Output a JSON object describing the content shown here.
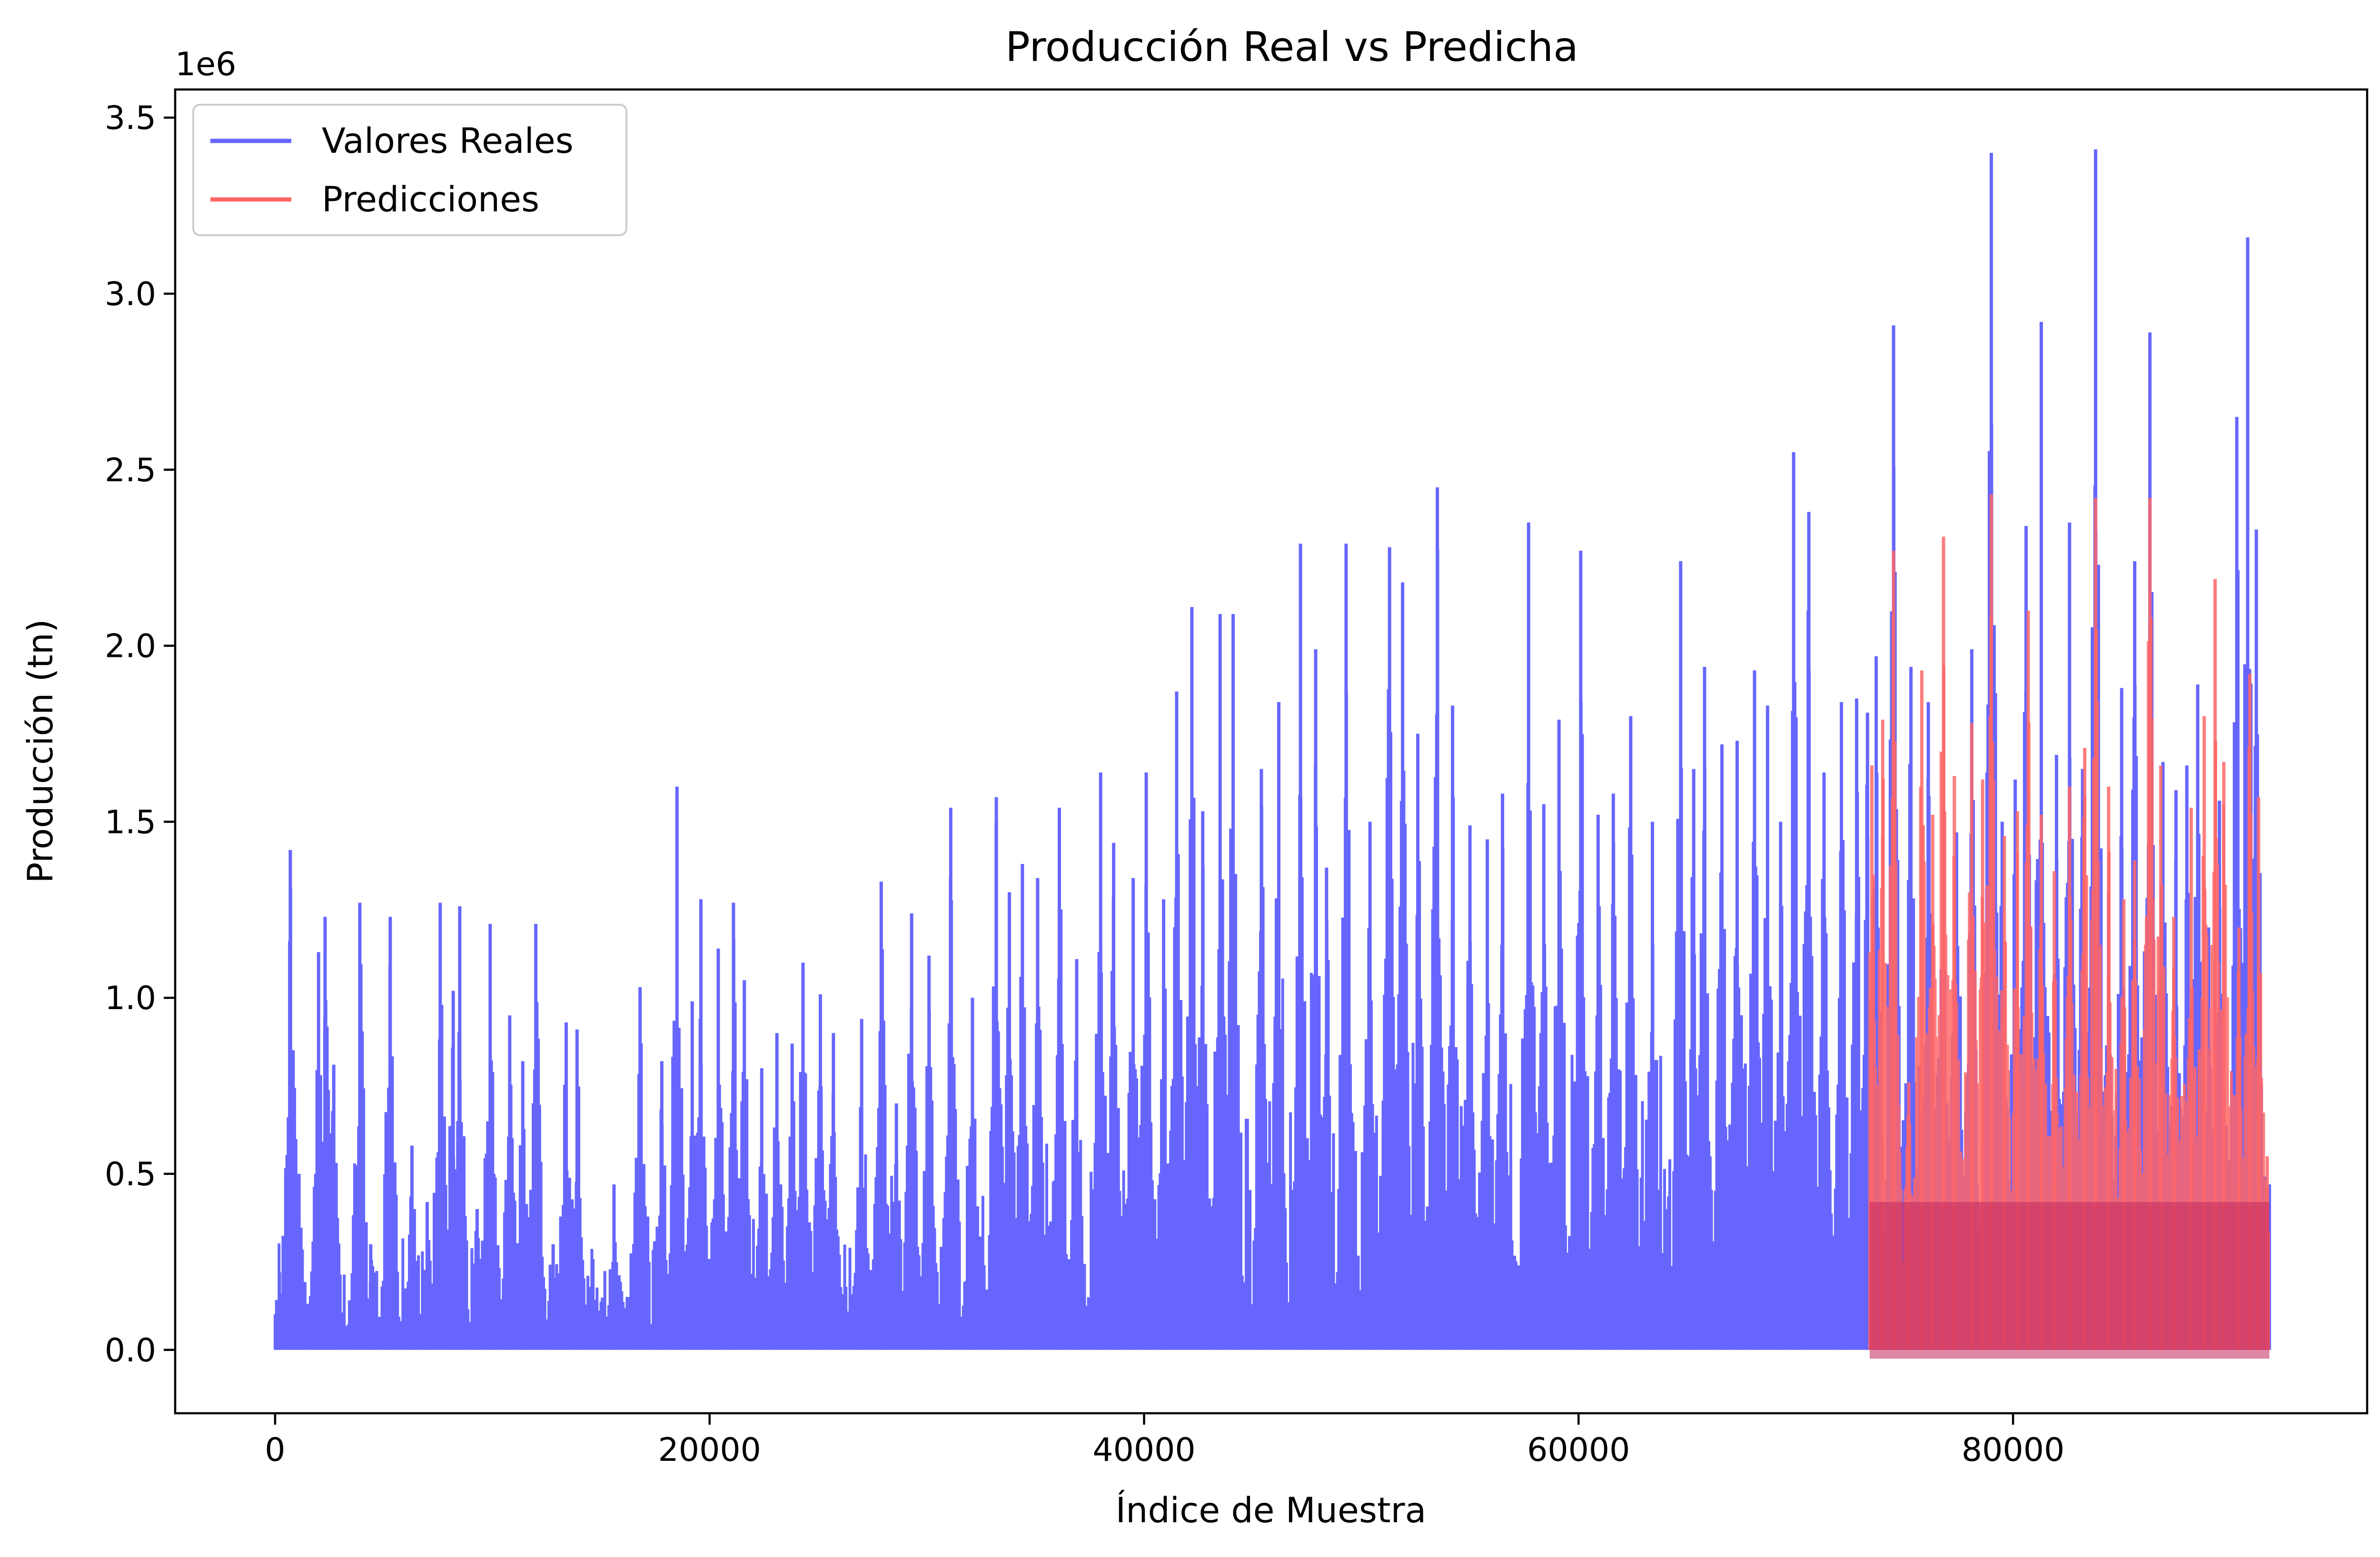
{
  "chart_data": {
    "type": "line",
    "title": "Producción Real vs Predicha",
    "xlabel": "Índice de Muestra",
    "ylabel": "Producción (tn)",
    "y_offset_label": "1e6",
    "xlim": [
      -4600,
      96300
    ],
    "ylim": [
      -180000,
      3580000
    ],
    "x_ticks": [
      0,
      20000,
      40000,
      60000,
      80000
    ],
    "x_tick_labels": [
      "0",
      "20000",
      "40000",
      "60000",
      "80000"
    ],
    "y_ticks": [
      0,
      500000,
      1000000,
      1500000,
      2000000,
      2500000,
      3000000,
      3500000
    ],
    "y_tick_labels": [
      "0.0",
      "0.5",
      "1.0",
      "1.5",
      "2.0",
      "2.5",
      "3.0",
      "3.5"
    ],
    "grid": false,
    "legend_position": "top-left",
    "colors": {
      "real": "#6666ff",
      "pred": "#ff6666",
      "overlap": "#c2265f"
    },
    "series": [
      {
        "name": "Valores Reales",
        "color": "#6666ff",
        "x_range": [
          0,
          91800
        ],
        "peaks": [
          [
            200,
            220000
          ],
          [
            700,
            1420000
          ],
          [
            1100,
            500000
          ],
          [
            2000,
            1130000
          ],
          [
            2300,
            1230000
          ],
          [
            2700,
            810000
          ],
          [
            3900,
            1270000
          ],
          [
            4400,
            300000
          ],
          [
            5300,
            1230000
          ],
          [
            6300,
            580000
          ],
          [
            7000,
            420000
          ],
          [
            7600,
            1270000
          ],
          [
            8200,
            1020000
          ],
          [
            8500,
            1260000
          ],
          [
            9300,
            400000
          ],
          [
            9900,
            1210000
          ],
          [
            10800,
            950000
          ],
          [
            11400,
            820000
          ],
          [
            12000,
            1210000
          ],
          [
            12800,
            300000
          ],
          [
            13400,
            930000
          ],
          [
            13900,
            910000
          ],
          [
            15600,
            470000
          ],
          [
            16800,
            1030000
          ],
          [
            17800,
            820000
          ],
          [
            18500,
            1600000
          ],
          [
            19200,
            990000
          ],
          [
            19600,
            1280000
          ],
          [
            20400,
            1140000
          ],
          [
            21100,
            1270000
          ],
          [
            21600,
            1050000
          ],
          [
            22400,
            800000
          ],
          [
            23100,
            900000
          ],
          [
            23800,
            870000
          ],
          [
            24300,
            1100000
          ],
          [
            25100,
            1010000
          ],
          [
            25700,
            900000
          ],
          [
            27000,
            940000
          ],
          [
            27900,
            1330000
          ],
          [
            28600,
            700000
          ],
          [
            29300,
            1240000
          ],
          [
            30100,
            1120000
          ],
          [
            31100,
            1540000
          ],
          [
            32100,
            1000000
          ],
          [
            33200,
            1570000
          ],
          [
            33800,
            1300000
          ],
          [
            34400,
            1380000
          ],
          [
            35100,
            1340000
          ],
          [
            36100,
            1540000
          ],
          [
            36900,
            1110000
          ],
          [
            38000,
            1640000
          ],
          [
            38600,
            1440000
          ],
          [
            39500,
            1340000
          ],
          [
            40100,
            1640000
          ],
          [
            40900,
            1280000
          ],
          [
            41500,
            1870000
          ],
          [
            42200,
            2110000
          ],
          [
            42700,
            1530000
          ],
          [
            43500,
            2090000
          ],
          [
            44100,
            2090000
          ],
          [
            45400,
            1650000
          ],
          [
            46200,
            1840000
          ],
          [
            47200,
            2290000
          ],
          [
            47900,
            1990000
          ],
          [
            48400,
            1370000
          ],
          [
            49300,
            2290000
          ],
          [
            50400,
            1500000
          ],
          [
            51300,
            2280000
          ],
          [
            51900,
            2180000
          ],
          [
            52600,
            1750000
          ],
          [
            53500,
            2450000
          ],
          [
            54200,
            1830000
          ],
          [
            55000,
            1490000
          ],
          [
            55800,
            1450000
          ],
          [
            56500,
            1580000
          ],
          [
            57700,
            2350000
          ],
          [
            58400,
            1550000
          ],
          [
            59100,
            1790000
          ],
          [
            60100,
            2270000
          ],
          [
            60900,
            1520000
          ],
          [
            61600,
            1580000
          ],
          [
            62400,
            1800000
          ],
          [
            63400,
            1500000
          ],
          [
            64700,
            2240000
          ],
          [
            65300,
            1650000
          ],
          [
            65800,
            1940000
          ],
          [
            66600,
            1720000
          ],
          [
            67300,
            1730000
          ],
          [
            68100,
            1930000
          ],
          [
            68700,
            1830000
          ],
          [
            69300,
            1500000
          ],
          [
            69900,
            2550000
          ],
          [
            70600,
            2380000
          ],
          [
            71300,
            1640000
          ],
          [
            72100,
            1840000
          ],
          [
            72800,
            1850000
          ],
          [
            73300,
            1810000
          ],
          [
            73700,
            1970000
          ],
          [
            74500,
            2910000
          ],
          [
            75300,
            1940000
          ],
          [
            76100,
            1840000
          ],
          [
            76800,
            1550000
          ],
          [
            77400,
            1470000
          ],
          [
            78100,
            1990000
          ],
          [
            78800,
            1640000
          ],
          [
            79000,
            3400000
          ],
          [
            79500,
            1500000
          ],
          [
            80100,
            1620000
          ],
          [
            80600,
            2340000
          ],
          [
            81300,
            2920000
          ],
          [
            82000,
            1690000
          ],
          [
            82600,
            2350000
          ],
          [
            83200,
            1650000
          ],
          [
            83800,
            3410000
          ],
          [
            84400,
            1300000
          ],
          [
            85000,
            1880000
          ],
          [
            85600,
            2240000
          ],
          [
            86300,
            2890000
          ],
          [
            86900,
            1670000
          ],
          [
            87500,
            1590000
          ],
          [
            88000,
            1660000
          ],
          [
            88500,
            1890000
          ],
          [
            89000,
            1200000
          ],
          [
            89500,
            1560000
          ],
          [
            90300,
            2650000
          ],
          [
            90800,
            3160000
          ],
          [
            91200,
            2330000
          ],
          [
            91800,
            470000
          ]
        ]
      },
      {
        "name": "Predicciones",
        "color": "#ff6666",
        "x_range": [
          73400,
          91800
        ],
        "peaks": [
          [
            73500,
            1660000
          ],
          [
            74000,
            1790000
          ],
          [
            74500,
            2270000
          ],
          [
            75200,
            760000
          ],
          [
            75800,
            1930000
          ],
          [
            76300,
            1520000
          ],
          [
            76800,
            2310000
          ],
          [
            77300,
            1630000
          ],
          [
            78100,
            1780000
          ],
          [
            78600,
            1620000
          ],
          [
            79000,
            2430000
          ],
          [
            79600,
            1460000
          ],
          [
            80200,
            1530000
          ],
          [
            80700,
            2100000
          ],
          [
            81300,
            1520000
          ],
          [
            81900,
            1360000
          ],
          [
            82600,
            1600000
          ],
          [
            83300,
            1710000
          ],
          [
            83800,
            2420000
          ],
          [
            84400,
            1600000
          ],
          [
            85100,
            1280000
          ],
          [
            85600,
            1390000
          ],
          [
            86300,
            2420000
          ],
          [
            86800,
            1660000
          ],
          [
            87400,
            1230000
          ],
          [
            88200,
            1540000
          ],
          [
            88800,
            1800000
          ],
          [
            89300,
            2190000
          ],
          [
            89700,
            1670000
          ],
          [
            90400,
            1200000
          ],
          [
            90900,
            1920000
          ],
          [
            91300,
            1570000
          ],
          [
            91700,
            550000
          ]
        ]
      }
    ]
  }
}
